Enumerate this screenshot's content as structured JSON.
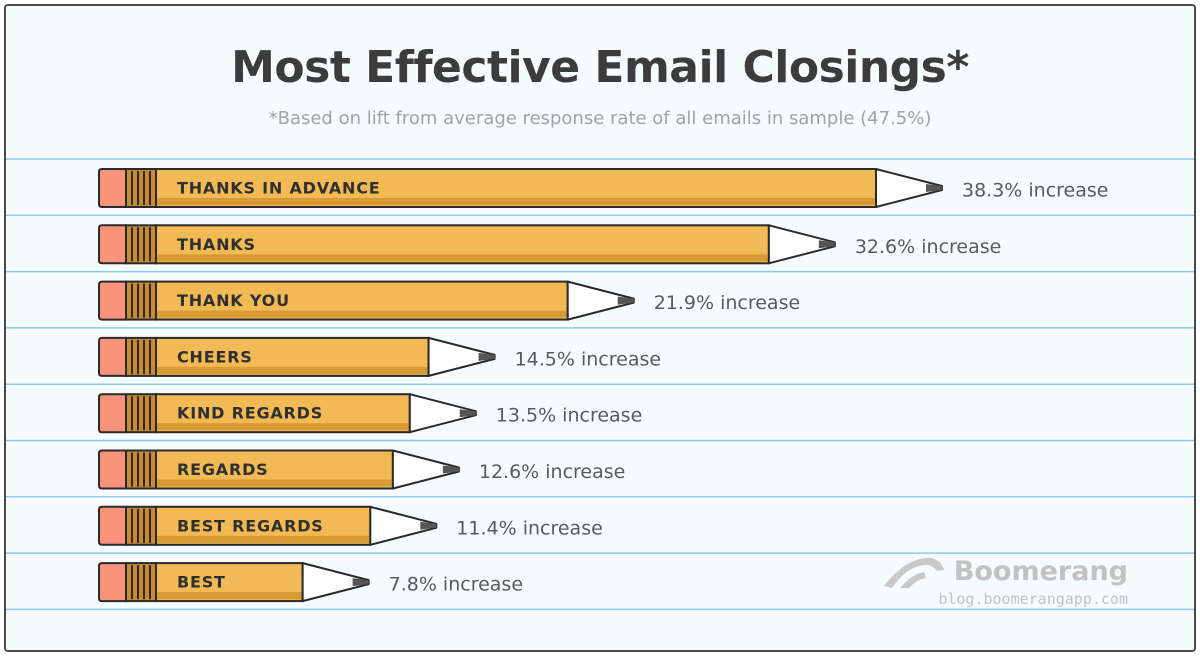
{
  "colors": {
    "background": "#f6fbfd",
    "ruled_line": "#8ccbe6",
    "pencil_body": "#f2ba55",
    "pencil_stripe": "#d89a33",
    "eraser": "#f7937b",
    "ferrule": "#c88a33",
    "tip_wood": "#ffffff",
    "graphite": "#555555",
    "outline": "#2a2a2a"
  },
  "chart_data": {
    "type": "bar",
    "orientation": "horizontal",
    "title": "Most Effective Email Closings*",
    "subtitle": "*Based on lift from average response rate of all emails in sample (47.5%)",
    "unit": "% increase",
    "xlim": [
      0,
      38.3
    ],
    "categories": [
      "THANKS IN ADVANCE",
      "THANKS",
      "THANK YOU",
      "CHEERS",
      "KIND REGARDS",
      "REGARDS",
      "BEST REGARDS",
      "BEST"
    ],
    "values": [
      38.3,
      32.6,
      21.9,
      14.5,
      13.5,
      12.6,
      11.4,
      7.8
    ],
    "value_labels": [
      "38.3% increase",
      "32.6% increase",
      "21.9% increase",
      "14.5% increase",
      "13.5% increase",
      "12.6% increase",
      "11.4% increase",
      "7.8% increase"
    ]
  },
  "branding": {
    "name": "Boomerang",
    "url": "blog.boomerangapp.com"
  }
}
